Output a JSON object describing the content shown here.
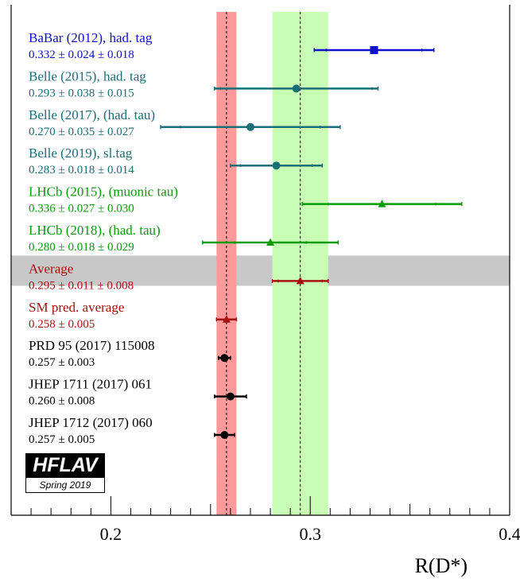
{
  "chart_data": {
    "type": "scatter",
    "xlabel": "R(D*)",
    "xlim": [
      0.15,
      0.4
    ],
    "xticks": [
      "0.2",
      "0.3",
      "0.4"
    ],
    "xtick_values": [
      0.2,
      0.3,
      0.4
    ],
    "bands": [
      {
        "name": "SM pred. average",
        "center": 0.258,
        "error": 0.005,
        "color": "#ff9a9a"
      },
      {
        "name": "Average",
        "center": 0.295,
        "error": 0.014,
        "color": "#c8ffb4"
      }
    ],
    "measurements": [
      {
        "name": "BaBar (2012), had. tag",
        "value_text": "0.332 ± 0.024 ± 0.018",
        "value": 0.332,
        "err_stat": 0.024,
        "err_tot": 0.03,
        "color": "#1010c8",
        "marker": "square"
      },
      {
        "name": "Belle (2015), had. tag",
        "value_text": "0.293 ± 0.038 ± 0.015",
        "value": 0.293,
        "err_stat": 0.038,
        "err_tot": 0.041,
        "color": "#1a6e76",
        "marker": "circle"
      },
      {
        "name": "Belle (2017), (had. tau)",
        "value_text": "0.270 ± 0.035 ± 0.027",
        "value": 0.27,
        "err_stat": 0.035,
        "err_tot": 0.045,
        "color": "#1a6e76",
        "marker": "circle"
      },
      {
        "name": "Belle (2019), sl.tag",
        "value_text": "0.283 ± 0.018 ± 0.014",
        "value": 0.283,
        "err_stat": 0.018,
        "err_tot": 0.023,
        "color": "#1a6e76",
        "marker": "circle"
      },
      {
        "name": "LHCb (2015), (muonic tau)",
        "value_text": "0.336 ± 0.027 ± 0.030",
        "value": 0.336,
        "err_stat": 0.027,
        "err_tot": 0.04,
        "color": "#0a9a0a",
        "marker": "triangle"
      },
      {
        "name": "LHCb (2018), (had. tau)",
        "value_text": "0.280 ± 0.018 ± 0.029",
        "value": 0.28,
        "err_stat": 0.018,
        "err_tot": 0.034,
        "color": "#0a9a0a",
        "marker": "triangle"
      },
      {
        "name": "Average",
        "value_text": "0.295 ± 0.011 ± 0.008",
        "value": 0.295,
        "err_stat": 0.011,
        "err_tot": 0.014,
        "color": "#a81010",
        "marker": "triangle",
        "highlight": true
      },
      {
        "name": "SM pred. average",
        "value_text": "0.258 ± 0.005",
        "value": 0.258,
        "err_stat": 0.005,
        "err_tot": 0.005,
        "color": "#a81010",
        "marker": "triangle"
      },
      {
        "name": "PRD 95 (2017) 115008",
        "value_text": "0.257 ± 0.003",
        "value": 0.257,
        "err_stat": 0.003,
        "err_tot": 0.003,
        "color": "#000000",
        "marker": "circle"
      },
      {
        "name": "JHEP 1711 (2017) 061",
        "value_text": "0.260 ± 0.008",
        "value": 0.26,
        "err_stat": 0.008,
        "err_tot": 0.008,
        "color": "#000000",
        "marker": "circle"
      },
      {
        "name": "JHEP 1712 (2017) 060",
        "value_text": "0.257 ± 0.005",
        "value": 0.257,
        "err_stat": 0.005,
        "err_tot": 0.005,
        "color": "#000000",
        "marker": "circle"
      }
    ],
    "highlight_color": "#c8c8c8"
  },
  "logo": {
    "title": "HFLAV",
    "subtitle": "Spring 2019"
  }
}
